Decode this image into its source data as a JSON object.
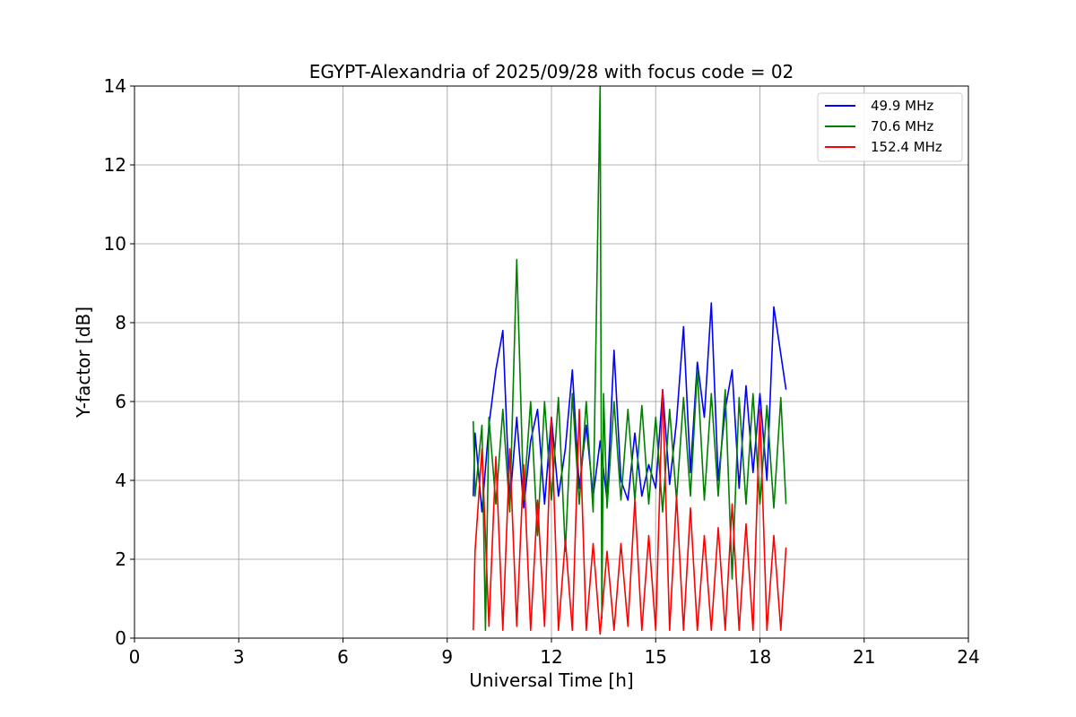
{
  "chart_data": {
    "type": "line",
    "title": "EGYPT-Alexandria of 2025/09/28 with focus code = 02",
    "xlabel": "Universal Time [h]",
    "ylabel": "Y-factor [dB]",
    "xlim": [
      0,
      24
    ],
    "ylim": [
      0,
      14
    ],
    "xticks": [
      0,
      3,
      6,
      9,
      12,
      15,
      18,
      21,
      24
    ],
    "yticks": [
      0,
      2,
      4,
      6,
      8,
      10,
      12,
      14
    ],
    "grid": true,
    "legend_position": "top-right",
    "series": [
      {
        "name": "49.9 MHz",
        "color": "#0000ff",
        "x": [
          9.75,
          9.8,
          10.0,
          10.2,
          10.4,
          10.6,
          10.8,
          11.0,
          11.2,
          11.4,
          11.6,
          11.8,
          12.0,
          12.2,
          12.4,
          12.6,
          12.8,
          13.0,
          13.2,
          13.4,
          13.6,
          13.8,
          14.0,
          14.2,
          14.4,
          14.6,
          14.8,
          15.0,
          15.2,
          15.4,
          15.6,
          15.8,
          16.0,
          16.2,
          16.4,
          16.6,
          16.8,
          17.0,
          17.2,
          17.4,
          17.6,
          17.8,
          18.0,
          18.2,
          18.4,
          18.6,
          18.75
        ],
        "values": [
          3.6,
          5.2,
          3.2,
          5.4,
          6.8,
          7.8,
          3.4,
          5.6,
          3.3,
          5.0,
          5.8,
          3.4,
          5.6,
          3.6,
          4.8,
          6.8,
          3.8,
          5.4,
          3.6,
          5.0,
          3.5,
          7.3,
          4.0,
          3.5,
          5.2,
          3.6,
          4.4,
          3.8,
          6.3,
          3.9,
          5.5,
          7.9,
          4.2,
          7.0,
          5.6,
          8.5,
          4.0,
          5.8,
          6.8,
          3.8,
          6.4,
          4.2,
          6.2,
          4.0,
          8.4,
          7.2,
          6.3
        ]
      },
      {
        "name": "70.6 MHz",
        "color": "#008000",
        "x": [
          9.75,
          9.8,
          10.0,
          10.1,
          10.2,
          10.4,
          10.6,
          10.8,
          11.0,
          11.2,
          11.4,
          11.6,
          11.8,
          12.0,
          12.2,
          12.4,
          12.6,
          12.8,
          13.0,
          13.2,
          13.4,
          13.45,
          13.5,
          13.6,
          13.8,
          14.0,
          14.2,
          14.4,
          14.6,
          14.8,
          15.0,
          15.2,
          15.4,
          15.6,
          15.8,
          16.0,
          16.2,
          16.4,
          16.6,
          16.8,
          17.0,
          17.2,
          17.4,
          17.6,
          17.8,
          18.0,
          18.2,
          18.4,
          18.6,
          18.75
        ],
        "values": [
          5.5,
          3.6,
          5.4,
          0.2,
          5.6,
          3.4,
          5.8,
          3.2,
          9.6,
          3.5,
          6.0,
          2.6,
          6.0,
          3.5,
          6.1,
          2.2,
          6.2,
          3.4,
          6.0,
          3.2,
          14.0,
          0.5,
          6.2,
          3.3,
          6.0,
          3.5,
          5.8,
          3.5,
          5.9,
          3.4,
          5.6,
          3.2,
          5.8,
          3.5,
          6.1,
          3.6,
          6.8,
          3.5,
          6.2,
          3.6,
          6.3,
          1.5,
          6.1,
          3.4,
          6.2,
          3.4,
          5.9,
          3.3,
          6.1,
          3.4
        ]
      },
      {
        "name": "152.4 MHz",
        "color": "#ff0000",
        "x": [
          9.75,
          9.8,
          10.0,
          10.2,
          10.4,
          10.6,
          10.8,
          11.0,
          11.2,
          11.4,
          11.6,
          11.8,
          12.0,
          12.2,
          12.4,
          12.6,
          12.8,
          13.0,
          13.2,
          13.4,
          13.6,
          13.8,
          14.0,
          14.2,
          14.4,
          14.6,
          14.8,
          15.0,
          15.2,
          15.4,
          15.6,
          15.8,
          16.0,
          16.2,
          16.4,
          16.6,
          16.8,
          17.0,
          17.2,
          17.4,
          17.6,
          17.8,
          18.0,
          18.2,
          18.4,
          18.6,
          18.75
        ],
        "values": [
          0.2,
          2.2,
          4.8,
          0.3,
          4.6,
          0.2,
          4.8,
          0.3,
          4.4,
          0.2,
          3.5,
          0.3,
          5.6,
          0.2,
          2.5,
          0.2,
          5.8,
          0.2,
          2.4,
          0.1,
          2.2,
          0.2,
          2.4,
          0.3,
          3.5,
          0.2,
          2.6,
          0.2,
          6.3,
          0.2,
          3.6,
          0.2,
          3.3,
          0.2,
          2.6,
          0.2,
          2.8,
          0.2,
          3.4,
          0.2,
          2.9,
          0.2,
          5.8,
          0.2,
          2.6,
          0.2,
          2.3
        ]
      }
    ]
  }
}
